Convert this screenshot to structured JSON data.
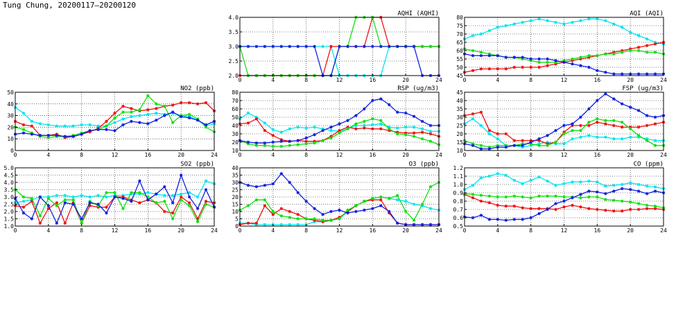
{
  "page": {
    "title": "Tung Chung, 20200117–20200120"
  },
  "colors": {
    "series_a": "#00e5ee",
    "series_b": "#ee1010",
    "series_c": "#10e010",
    "series_d": "#1020e0",
    "grid": "#000000"
  },
  "chart_data": [
    {
      "id": "no2",
      "type": "line",
      "title": "NO2 (ppb)",
      "xlim": [
        0,
        24
      ],
      "xticks": [
        0,
        4,
        8,
        12,
        16,
        20,
        24
      ],
      "ylim": [
        0,
        50
      ],
      "yticks": [
        0,
        10,
        20,
        30,
        40,
        50
      ],
      "series": [
        {
          "color": "#00e5ee",
          "values": [
            37,
            32,
            25,
            23,
            22,
            21,
            21,
            21,
            22,
            22,
            21,
            21,
            24,
            27,
            29,
            30,
            31,
            32,
            31,
            32,
            30,
            29,
            26,
            21,
            23
          ]
        },
        {
          "color": "#ee1010",
          "values": [
            25,
            22,
            21,
            13,
            13,
            14,
            11,
            12,
            14,
            16,
            19,
            25,
            32,
            38,
            36,
            34,
            35,
            36,
            38,
            39,
            41,
            41,
            40,
            41,
            34
          ]
        },
        {
          "color": "#10e010",
          "values": [
            20,
            18,
            15,
            12,
            11,
            12,
            12,
            13,
            15,
            17,
            18,
            21,
            28,
            33,
            33,
            35,
            47,
            40,
            38,
            24,
            30,
            31,
            27,
            20,
            16
          ]
        },
        {
          "color": "#1020e0",
          "values": [
            14,
            15,
            14,
            13,
            13,
            13,
            12,
            12,
            14,
            17,
            18,
            18,
            17,
            22,
            25,
            24,
            23,
            26,
            30,
            33,
            29,
            28,
            26,
            22,
            25
          ]
        }
      ]
    },
    {
      "id": "so2",
      "type": "line",
      "title": "SO2 (ppb)",
      "xlim": [
        0,
        24
      ],
      "xticks": [
        0,
        4,
        8,
        12,
        16,
        20,
        24
      ],
      "ylim": [
        1.0,
        5.0
      ],
      "yticks": [
        1.0,
        1.5,
        2.0,
        2.5,
        3.0,
        3.5,
        4.0,
        4.5,
        5.0
      ],
      "series": [
        {
          "color": "#00e5ee",
          "values": [
            2.6,
            2.7,
            2.8,
            3.0,
            3.0,
            3.1,
            3.1,
            3.0,
            3.1,
            3.0,
            3.1,
            3.0,
            3.1,
            3.1,
            3.2,
            3.2,
            3.3,
            3.2,
            3.1,
            3.1,
            3.2,
            3.3,
            3.0,
            4.1,
            3.9
          ]
        },
        {
          "color": "#ee1010",
          "values": [
            2.4,
            2.3,
            2.7,
            1.2,
            2.2,
            2.6,
            1.2,
            2.6,
            1.2,
            2.4,
            2.3,
            2.3,
            3.0,
            3.0,
            2.8,
            2.6,
            2.8,
            2.6,
            2.0,
            1.9,
            3.0,
            2.6,
            1.5,
            2.7,
            2.6
          ]
        },
        {
          "color": "#10e010",
          "values": [
            3.5,
            3.0,
            2.9,
            1.7,
            2.9,
            2.4,
            2.8,
            2.8,
            1.2,
            2.7,
            2.4,
            3.3,
            3.3,
            2.2,
            3.3,
            3.3,
            3.0,
            2.6,
            2.7,
            1.5,
            2.8,
            2.4,
            1.3,
            2.5,
            2.3
          ]
        },
        {
          "color": "#1020e0",
          "values": [
            2.9,
            1.9,
            1.5,
            3.0,
            2.4,
            1.2,
            2.6,
            2.5,
            1.5,
            2.6,
            2.5,
            1.9,
            3.0,
            2.9,
            2.7,
            4.1,
            2.8,
            3.2,
            3.7,
            2.6,
            4.5,
            3.0,
            2.2,
            3.5,
            2.3
          ]
        }
      ]
    },
    {
      "id": "aqhi",
      "type": "line",
      "title": "AQHI (AQHI)",
      "xlim": [
        0,
        24
      ],
      "xticks": [
        0,
        4,
        8,
        12,
        16,
        20,
        24
      ],
      "ylim": [
        2.0,
        4.0
      ],
      "yticks": [
        2.0,
        2.5,
        3.0,
        3.5,
        4.0
      ],
      "series": [
        {
          "color": "#00e5ee",
          "values": [
            3,
            3,
            3,
            3,
            3,
            3,
            3,
            3,
            3,
            3,
            3,
            3,
            2,
            2,
            2,
            2,
            2,
            2,
            3,
            3,
            3,
            3,
            3,
            3,
            3
          ]
        },
        {
          "color": "#ee1010",
          "values": [
            2,
            2,
            2,
            2,
            2,
            2,
            2,
            2,
            2,
            2,
            2,
            3,
            3,
            3,
            3,
            3,
            4,
            4,
            3,
            3,
            3,
            3,
            3,
            3,
            3
          ]
        },
        {
          "color": "#10e010",
          "values": [
            3,
            2,
            2,
            2,
            2,
            2,
            2,
            2,
            2,
            2,
            2,
            2,
            3,
            3,
            4,
            4,
            4,
            3,
            3,
            3,
            3,
            3,
            3,
            3,
            3
          ]
        },
        {
          "color": "#1020e0",
          "values": [
            3,
            3,
            3,
            3,
            3,
            3,
            3,
            3,
            3,
            3,
            2,
            2,
            3,
            3,
            3,
            3,
            3,
            3,
            3,
            3,
            3,
            3,
            2,
            2,
            2
          ]
        }
      ]
    },
    {
      "id": "rsp",
      "type": "line",
      "title": "RSP (ug/m3)",
      "xlim": [
        0,
        24
      ],
      "xticks": [
        0,
        4,
        8,
        12,
        16,
        20,
        24
      ],
      "ylim": [
        10,
        80
      ],
      "yticks": [
        10,
        20,
        30,
        40,
        50,
        60,
        70,
        80
      ],
      "series": [
        {
          "color": "#00e5ee",
          "values": [
            48,
            55,
            50,
            43,
            35,
            32,
            36,
            38,
            37,
            38,
            36,
            34,
            33,
            36,
            40,
            40,
            41,
            42,
            38,
            37,
            38,
            38,
            36,
            33,
            33
          ]
        },
        {
          "color": "#ee1010",
          "values": [
            42,
            43,
            48,
            34,
            28,
            23,
            21,
            22,
            21,
            21,
            22,
            27,
            34,
            38,
            36,
            37,
            36,
            36,
            34,
            32,
            31,
            31,
            32,
            30,
            27
          ]
        },
        {
          "color": "#10e010",
          "values": [
            22,
            18,
            16,
            16,
            15,
            15,
            16,
            17,
            18,
            19,
            22,
            25,
            31,
            36,
            42,
            45,
            48,
            46,
            36,
            30,
            29,
            27,
            24,
            21,
            17
          ]
        },
        {
          "color": "#1020e0",
          "values": [
            22,
            20,
            19,
            19,
            20,
            21,
            21,
            22,
            25,
            29,
            34,
            38,
            42,
            46,
            52,
            60,
            70,
            72,
            65,
            56,
            55,
            51,
            45,
            40,
            40
          ]
        }
      ]
    },
    {
      "id": "o3",
      "type": "line",
      "title": "O3 (ppb)",
      "xlim": [
        0,
        24
      ],
      "xticks": [
        0,
        4,
        8,
        12,
        16,
        20,
        24
      ],
      "ylim": [
        0,
        40
      ],
      "yticks": [
        0,
        5,
        10,
        15,
        20,
        25,
        30,
        35,
        40
      ],
      "series": [
        {
          "color": "#00e5ee",
          "values": [
            2,
            2,
            1,
            1,
            1,
            1,
            1,
            1,
            1,
            3,
            3,
            4,
            5,
            10,
            14,
            17,
            19,
            20,
            19,
            18,
            17,
            15,
            14,
            12,
            11
          ]
        },
        {
          "color": "#ee1010",
          "values": [
            1,
            2,
            2,
            14,
            8,
            12,
            10,
            8,
            5,
            4,
            3,
            4,
            6,
            10,
            14,
            17,
            18,
            18,
            9,
            2,
            1,
            1,
            1,
            1,
            1
          ]
        },
        {
          "color": "#10e010",
          "values": [
            11,
            14,
            18,
            18,
            10,
            7,
            6,
            5,
            5,
            5,
            4,
            4,
            5,
            11,
            14,
            17,
            19,
            20,
            19,
            21,
            10,
            4,
            15,
            27,
            30
          ]
        },
        {
          "color": "#1020e0",
          "values": [
            30,
            28,
            27,
            28,
            29,
            36,
            30,
            23,
            17,
            12,
            8,
            10,
            11,
            9,
            10,
            11,
            12,
            14,
            10,
            2,
            1,
            1,
            1,
            1,
            1
          ]
        }
      ]
    },
    {
      "id": "aqi",
      "type": "line",
      "title": "AQI (AQI)",
      "xlim": [
        0,
        24
      ],
      "xticks": [
        0,
        4,
        8,
        12,
        16,
        20,
        24
      ],
      "ylim": [
        45,
        80
      ],
      "yticks": [
        45,
        50,
        55,
        60,
        65,
        70,
        75,
        80
      ],
      "series": [
        {
          "color": "#00e5ee",
          "values": [
            67,
            69,
            70,
            72,
            74,
            75,
            76,
            77,
            78,
            79,
            78,
            77,
            76,
            77,
            78,
            79,
            79,
            78,
            76,
            74,
            71,
            69,
            67,
            65,
            64
          ]
        },
        {
          "color": "#ee1010",
          "values": [
            47,
            48,
            49,
            49,
            49,
            49,
            50,
            50,
            50,
            50,
            51,
            52,
            53,
            54,
            55,
            56,
            57,
            58,
            59,
            60,
            61,
            62,
            63,
            64,
            65
          ]
        },
        {
          "color": "#10e010",
          "values": [
            61,
            60,
            59,
            58,
            57,
            56,
            56,
            55,
            54,
            53,
            53,
            53,
            54,
            55,
            56,
            57,
            57,
            58,
            58,
            59,
            60,
            60,
            59,
            59,
            58
          ]
        },
        {
          "color": "#1020e0",
          "values": [
            58,
            57,
            57,
            57,
            57,
            56,
            56,
            56,
            55,
            55,
            55,
            54,
            53,
            52,
            51,
            50,
            48,
            47,
            46,
            46,
            46,
            46,
            46,
            46,
            46
          ]
        }
      ]
    },
    {
      "id": "fsp",
      "type": "line",
      "title": "FSP (ug/m3)",
      "xlim": [
        0,
        24
      ],
      "xticks": [
        0,
        4,
        8,
        12,
        16,
        20,
        24
      ],
      "ylim": [
        10,
        45
      ],
      "yticks": [
        10,
        15,
        20,
        25,
        30,
        35,
        40,
        45
      ],
      "series": [
        {
          "color": "#00e5ee",
          "values": [
            26,
            29,
            25,
            20,
            17,
            13,
            13,
            12,
            13,
            14,
            15,
            14,
            14,
            17,
            18,
            19,
            18,
            18,
            17,
            17,
            18,
            18,
            17,
            16,
            16
          ]
        },
        {
          "color": "#ee1010",
          "values": [
            31,
            32,
            33,
            22,
            20,
            20,
            16,
            16,
            16,
            16,
            14,
            15,
            21,
            25,
            25,
            25,
            27,
            26,
            25,
            24,
            24,
            24,
            25,
            26,
            27
          ]
        },
        {
          "color": "#10e010",
          "values": [
            16,
            14,
            13,
            12,
            13,
            13,
            13,
            14,
            14,
            13,
            13,
            15,
            20,
            22,
            22,
            27,
            29,
            28,
            28,
            27,
            23,
            19,
            16,
            13,
            13
          ]
        },
        {
          "color": "#1020e0",
          "values": [
            14,
            13,
            11,
            11,
            12,
            12,
            13,
            13,
            15,
            17,
            19,
            22,
            25,
            26,
            30,
            35,
            40,
            44,
            41,
            38,
            36,
            34,
            31,
            30,
            31
          ]
        }
      ]
    },
    {
      "id": "co",
      "type": "line",
      "title": "CO (ppm)",
      "xlim": [
        0,
        24
      ],
      "xticks": [
        0,
        4,
        8,
        12,
        16,
        20,
        24
      ],
      "ylim": [
        0.5,
        1.2
      ],
      "yticks": [
        0.5,
        0.6,
        0.7,
        0.8,
        0.9,
        1.0,
        1.1,
        1.2
      ],
      "series": [
        {
          "color": "#00e5ee",
          "values": [
            0.94,
            0.99,
            1.08,
            1.1,
            1.13,
            1.11,
            1.05,
            1.01,
            1.05,
            1.09,
            1.04,
            0.99,
            1.01,
            1.03,
            1.03,
            1.04,
            1.03,
            0.98,
            0.99,
            1.0,
            1.02,
            1.0,
            0.98,
            0.97,
            0.95
          ]
        },
        {
          "color": "#ee1010",
          "values": [
            0.88,
            0.84,
            0.8,
            0.78,
            0.75,
            0.74,
            0.74,
            0.72,
            0.71,
            0.71,
            0.71,
            0.7,
            0.73,
            0.75,
            0.73,
            0.71,
            0.7,
            0.69,
            0.68,
            0.68,
            0.7,
            0.7,
            0.71,
            0.71,
            0.7
          ]
        },
        {
          "color": "#10e010",
          "values": [
            0.89,
            0.88,
            0.87,
            0.86,
            0.85,
            0.85,
            0.86,
            0.85,
            0.84,
            0.86,
            0.86,
            0.86,
            0.85,
            0.85,
            0.84,
            0.85,
            0.85,
            0.82,
            0.81,
            0.8,
            0.79,
            0.77,
            0.75,
            0.74,
            0.72
          ]
        },
        {
          "color": "#1020e0",
          "values": [
            0.61,
            0.6,
            0.63,
            0.58,
            0.58,
            0.57,
            0.58,
            0.58,
            0.6,
            0.65,
            0.7,
            0.77,
            0.8,
            0.84,
            0.88,
            0.92,
            0.91,
            0.89,
            0.92,
            0.95,
            0.94,
            0.92,
            0.89,
            0.92,
            0.9
          ]
        }
      ]
    }
  ]
}
